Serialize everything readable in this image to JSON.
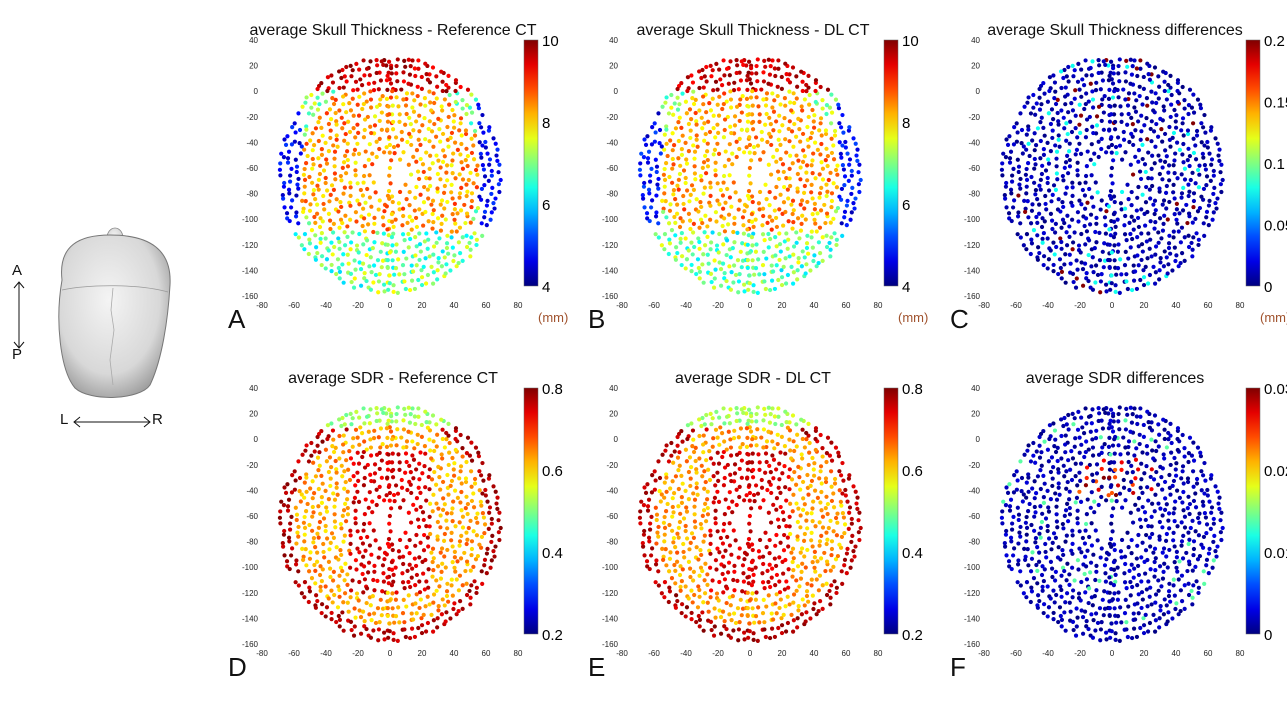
{
  "orientation": {
    "ap_top": "A",
    "ap_bottom": "P",
    "lr_left": "L",
    "lr_right": "R"
  },
  "chart_data": [
    {
      "id": "A",
      "type": "scatter",
      "title": "average Skull Thickness - Reference CT",
      "panel_letter": "A",
      "unit": "(mm)",
      "cmap_range": [
        4,
        10
      ],
      "colorbar_ticks": [
        "10",
        "8",
        "6",
        "4"
      ],
      "xlim": [
        -80,
        80
      ],
      "ylim": [
        -160,
        40
      ],
      "xticks": [
        "-80",
        "-60",
        "-40",
        "-20",
        "0",
        "20",
        "40",
        "60",
        "80"
      ],
      "yticks": [
        "40",
        "20",
        "0",
        "-20",
        "-40",
        "-60",
        "-80",
        "-100",
        "-120",
        "-140",
        "-160"
      ],
      "pattern": "thickness"
    },
    {
      "id": "B",
      "type": "scatter",
      "title": "average Skull Thickness - DL CT",
      "panel_letter": "B",
      "unit": "(mm)",
      "cmap_range": [
        4,
        10
      ],
      "colorbar_ticks": [
        "10",
        "8",
        "6",
        "4"
      ],
      "xlim": [
        -80,
        80
      ],
      "ylim": [
        -160,
        40
      ],
      "xticks": [
        "-80",
        "-60",
        "-40",
        "-20",
        "0",
        "20",
        "40",
        "60",
        "80"
      ],
      "yticks": [
        "40",
        "20",
        "0",
        "-20",
        "-40",
        "-60",
        "-80",
        "-100",
        "-120",
        "-140",
        "-160"
      ],
      "pattern": "thickness"
    },
    {
      "id": "C",
      "type": "scatter",
      "title": "average Skull Thickness differences",
      "panel_letter": "C",
      "unit": "(mm)",
      "cmap_range": [
        0,
        0.2
      ],
      "colorbar_ticks": [
        "0.2",
        "0.15",
        "0.1",
        "0.05",
        "0"
      ],
      "xlim": [
        -80,
        80
      ],
      "ylim": [
        -160,
        40
      ],
      "xticks": [
        "-80",
        "-60",
        "-40",
        "-20",
        "0",
        "20",
        "40",
        "60",
        "80"
      ],
      "yticks": [
        "40",
        "20",
        "0",
        "-20",
        "-40",
        "-60",
        "-80",
        "-100",
        "-120",
        "-140",
        "-160"
      ],
      "pattern": "diff_thickness"
    },
    {
      "id": "D",
      "type": "scatter",
      "title": "average SDR - Reference CT",
      "panel_letter": "D",
      "unit": "",
      "cmap_range": [
        0.2,
        0.8
      ],
      "colorbar_ticks": [
        "0.8",
        "0.6",
        "0.4",
        "0.2"
      ],
      "xlim": [
        -80,
        80
      ],
      "ylim": [
        -160,
        40
      ],
      "xticks": [
        "-80",
        "-60",
        "-40",
        "-20",
        "0",
        "20",
        "40",
        "60",
        "80"
      ],
      "yticks": [
        "40",
        "20",
        "0",
        "-20",
        "-40",
        "-60",
        "-80",
        "-100",
        "-120",
        "-140",
        "-160"
      ],
      "pattern": "sdr"
    },
    {
      "id": "E",
      "type": "scatter",
      "title": "average SDR - DL CT",
      "panel_letter": "E",
      "unit": "",
      "cmap_range": [
        0.2,
        0.8
      ],
      "colorbar_ticks": [
        "0.8",
        "0.6",
        "0.4",
        "0.2"
      ],
      "xlim": [
        -80,
        80
      ],
      "ylim": [
        -160,
        40
      ],
      "xticks": [
        "-80",
        "-60",
        "-40",
        "-20",
        "0",
        "20",
        "40",
        "60",
        "80"
      ],
      "yticks": [
        "40",
        "20",
        "0",
        "-20",
        "-40",
        "-60",
        "-80",
        "-100",
        "-120",
        "-140",
        "-160"
      ],
      "pattern": "sdr"
    },
    {
      "id": "F",
      "type": "scatter",
      "title": "average SDR differences",
      "panel_letter": "F",
      "unit": "",
      "cmap_range": [
        0,
        0.03
      ],
      "colorbar_ticks": [
        "0.03",
        "0.02",
        "0.01",
        "0"
      ],
      "xlim": [
        -80,
        80
      ],
      "ylim": [
        -160,
        40
      ],
      "xticks": [
        "-80",
        "-60",
        "-40",
        "-20",
        "0",
        "20",
        "40",
        "60",
        "80"
      ],
      "yticks": [
        "40",
        "20",
        "0",
        "-20",
        "-40",
        "-60",
        "-80",
        "-100",
        "-120",
        "-140",
        "-160"
      ],
      "pattern": "diff_sdr"
    }
  ]
}
